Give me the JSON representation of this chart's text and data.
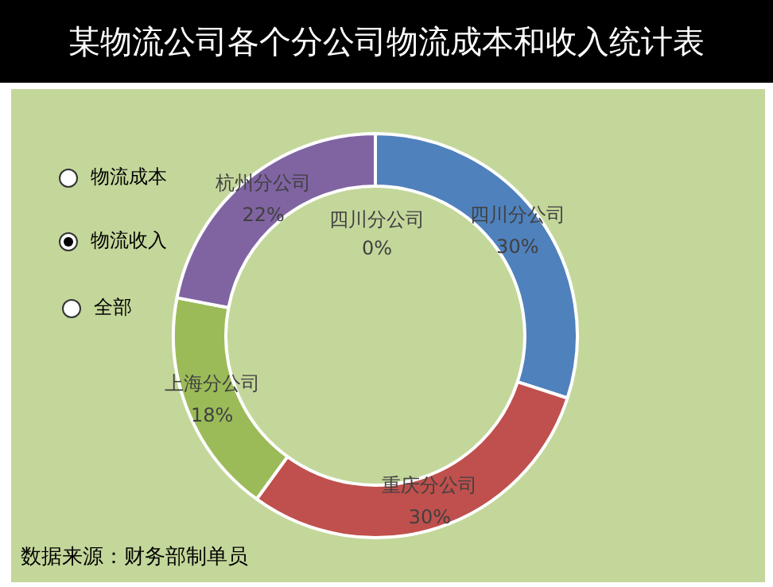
{
  "chart_data": {
    "type": "donut",
    "title": "某物流公司各个分公司物流成本和收入统计表",
    "categories": [
      "四川分公司",
      "重庆分公司",
      "上海分公司",
      "杭州分公司"
    ],
    "values": [
      30,
      30,
      18,
      22
    ],
    "colors": [
      "#4f81bd",
      "#c0504d",
      "#9bbb59",
      "#8064a2"
    ],
    "value_labels": [
      "30%",
      "30%",
      "18%",
      "22%"
    ],
    "legend": false,
    "annotations": [
      "物流成本",
      "物流收入",
      "全部",
      "四川分公司 0%",
      "数据来源：财务部制单员"
    ]
  }
}
